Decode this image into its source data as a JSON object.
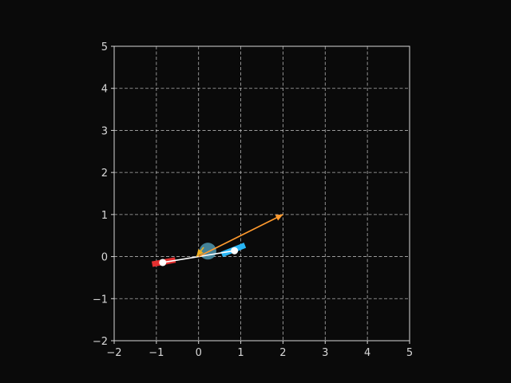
{
  "chart_data": {
    "type": "scatter",
    "title": "",
    "xlabel": "",
    "ylabel": "",
    "xlim": [
      -2,
      5
    ],
    "ylim": [
      -2,
      5
    ],
    "grid": true,
    "xticks": [
      "−2",
      "−1",
      "0",
      "1",
      "2",
      "3",
      "4",
      "5"
    ],
    "yticks": [
      "−2",
      "−1",
      "0",
      "1",
      "2",
      "3",
      "4",
      "5"
    ],
    "xtick_values": [
      -2,
      -1,
      0,
      1,
      2,
      3,
      4,
      5
    ],
    "ytick_values": [
      -2,
      -1,
      0,
      1,
      2,
      3,
      4,
      5
    ],
    "segments": [
      {
        "from": [
          -1.1,
          -0.18
        ],
        "to": [
          -0.55,
          -0.08
        ],
        "color": "#e53030",
        "role": "red-bar"
      },
      {
        "from": [
          0.55,
          0.05
        ],
        "to": [
          1.1,
          0.27
        ],
        "color": "#29b6f6",
        "role": "blue-bar"
      },
      {
        "from": [
          -0.85,
          -0.14
        ],
        "to": [
          0.85,
          0.14
        ],
        "color": "#ffffff",
        "role": "white-link"
      }
    ],
    "points": [
      {
        "x": -0.85,
        "y": -0.14,
        "color": "#ffffff"
      },
      {
        "x": 0.85,
        "y": 0.14,
        "color": "#ffffff"
      }
    ],
    "center_disk": {
      "x": 0.22,
      "y": 0.13,
      "r": 0.2,
      "color": "#4a8fa6"
    },
    "arrows": [
      {
        "from": [
          0,
          0
        ],
        "to": [
          2,
          1
        ],
        "color": "#ff9a2e"
      },
      {
        "from": [
          0.12,
          0.22
        ],
        "to": [
          -0.05,
          0.0
        ],
        "color": "#f0b020"
      }
    ]
  }
}
